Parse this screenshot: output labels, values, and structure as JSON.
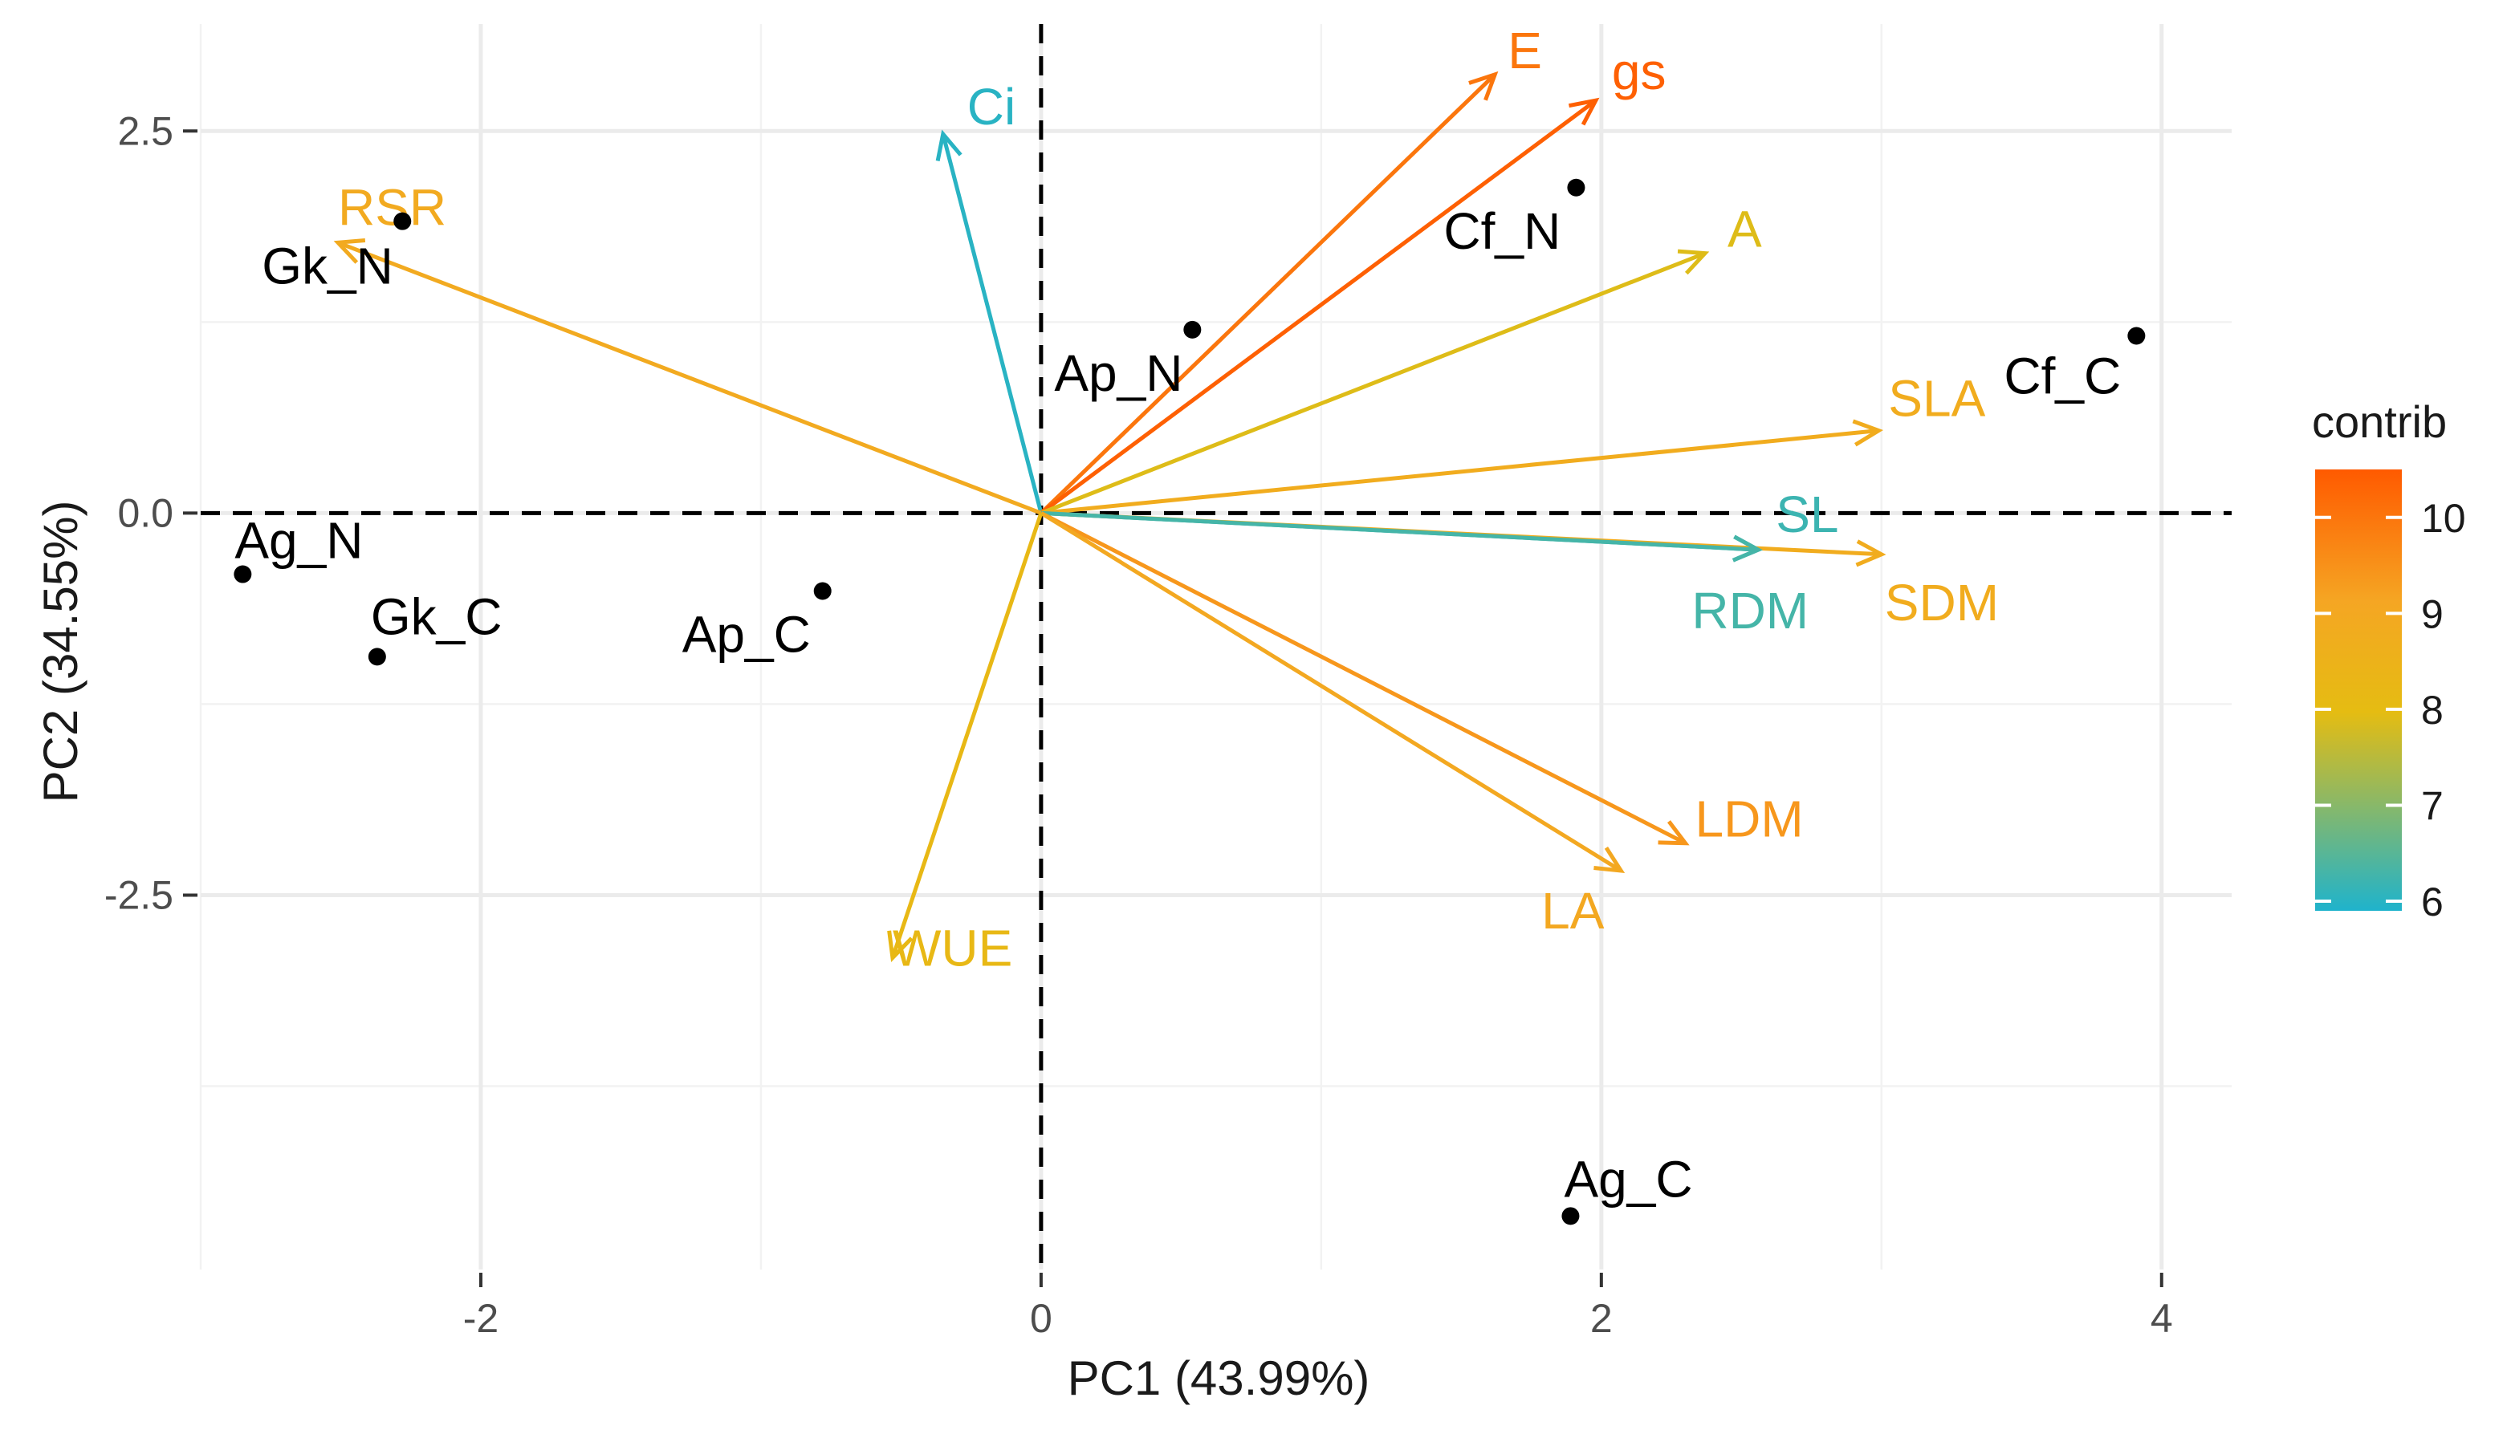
{
  "chart_data": {
    "type": "biplot",
    "xlabel": "PC1 (43.99%)",
    "ylabel": "PC2 (34.55%)",
    "xlim": [
      -3.0,
      4.25
    ],
    "ylim": [
      -4.95,
      3.2
    ],
    "x_ticks": [
      -2,
      0,
      2,
      4
    ],
    "y_ticks": [
      -2.5,
      0.0,
      2.5
    ],
    "x_tick_labels": [
      "-2",
      "0",
      "2",
      "4"
    ],
    "y_tick_labels": [
      "-2.5",
      "0.0",
      "2.5"
    ],
    "minor_x_gridlines": [
      -3,
      -1,
      1,
      3
    ],
    "minor_y_gridlines": [
      -3.75,
      -1.25,
      1.25
    ],
    "individuals": [
      {
        "name": "Gk_N",
        "x": -2.28,
        "y": 1.91
      },
      {
        "name": "Cf_N",
        "x": 1.91,
        "y": 2.13
      },
      {
        "name": "Ap_N",
        "x": 0.54,
        "y": 1.2
      },
      {
        "name": "Cf_C",
        "x": 3.91,
        "y": 1.16
      },
      {
        "name": "Ag_N",
        "x": -2.85,
        "y": -0.4
      },
      {
        "name": "Gk_C",
        "x": -2.37,
        "y": -0.94
      },
      {
        "name": "Ap_C",
        "x": -0.78,
        "y": -0.51
      },
      {
        "name": "Ag_C",
        "x": 1.89,
        "y": -4.6
      }
    ],
    "variables": [
      {
        "name": "Ci",
        "x": -0.35,
        "y": 2.48,
        "contrib": 6.0
      },
      {
        "name": "E",
        "x": 1.62,
        "y": 2.87,
        "contrib": 10.0
      },
      {
        "name": "gs",
        "x": 1.98,
        "y": 2.7,
        "contrib": 10.4
      },
      {
        "name": "A",
        "x": 2.37,
        "y": 1.7,
        "contrib": 7.9
      },
      {
        "name": "RSR",
        "x": -2.51,
        "y": 1.77,
        "contrib": 8.9
      },
      {
        "name": "SLA",
        "x": 2.99,
        "y": 0.54,
        "contrib": 8.8
      },
      {
        "name": "SL",
        "x": 2.56,
        "y": -0.24,
        "contrib": 6.2
      },
      {
        "name": "SDM",
        "x": 3.0,
        "y": -0.27,
        "contrib": 8.8
      },
      {
        "name": "RDM",
        "x": 2.56,
        "y": -0.24,
        "contrib": 6.3
      },
      {
        "name": "LDM",
        "x": 2.3,
        "y": -2.16,
        "contrib": 9.4
      },
      {
        "name": "LA",
        "x": 2.07,
        "y": -2.34,
        "contrib": 9.0
      },
      {
        "name": "WUE",
        "x": -0.53,
        "y": -2.91,
        "contrib": 8.2
      }
    ],
    "legend": {
      "title": "contrib",
      "range": [
        5.9,
        10.5
      ],
      "ticks": [
        6,
        7,
        8,
        9,
        10
      ],
      "tick_labels": [
        "6",
        "7",
        "8",
        "9",
        "10"
      ],
      "position": "right",
      "gradient_colors": [
        "#1FB3CC",
        "#E5BC12",
        "#F5A623",
        "#FF5A00"
      ]
    }
  }
}
